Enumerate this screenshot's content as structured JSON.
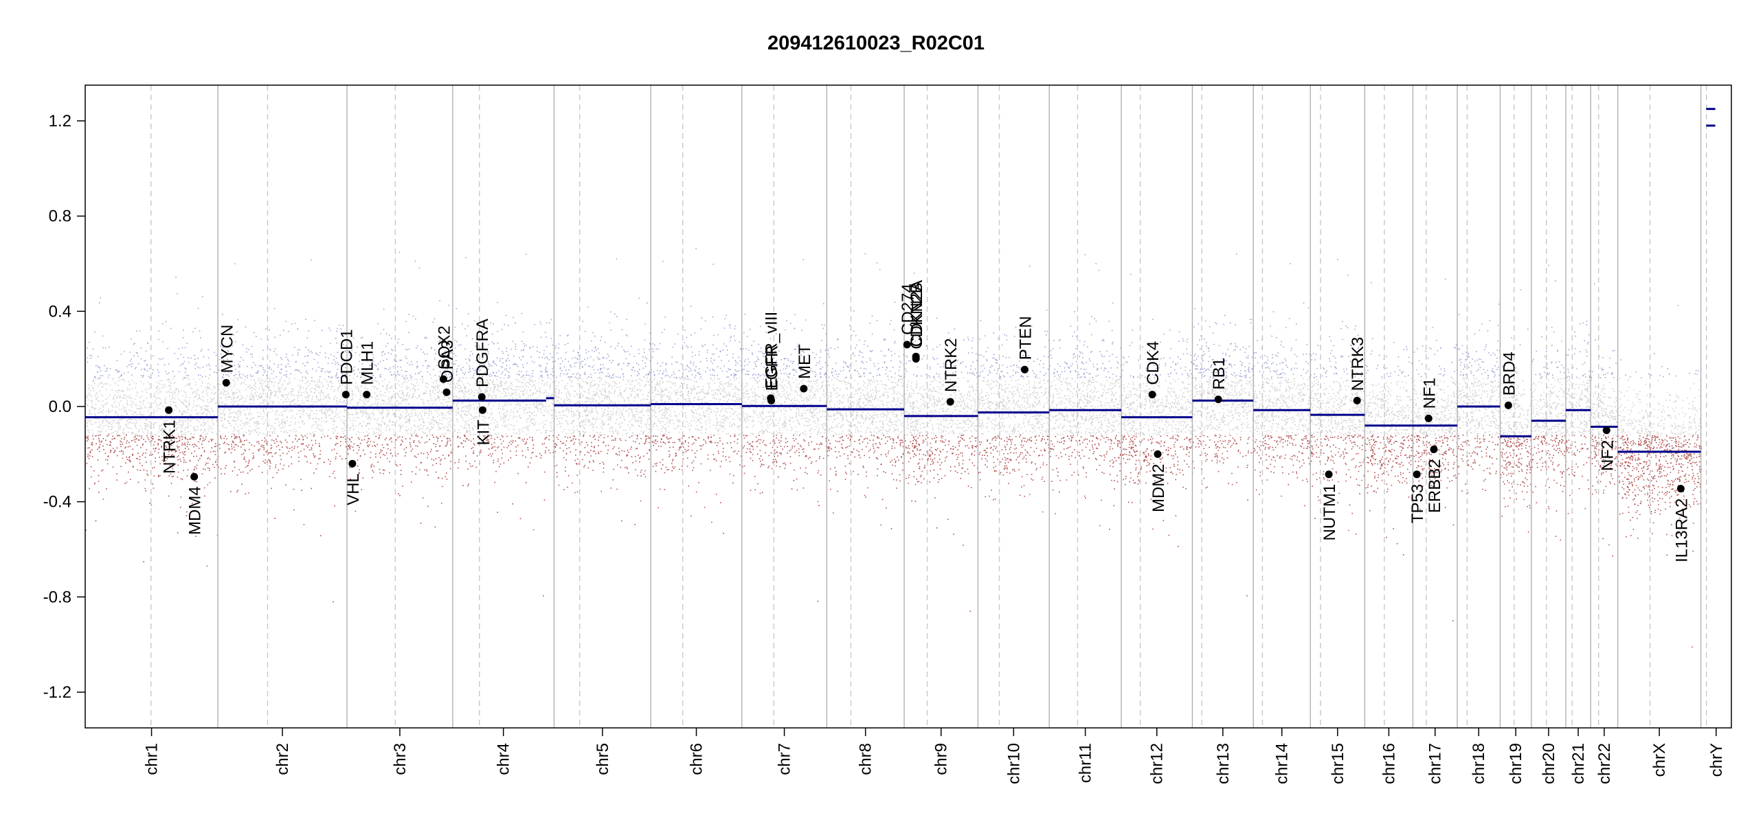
{
  "chart_data": {
    "type": "scatter",
    "title": "209412610023_R02C01",
    "xlabel": "",
    "ylabel": "",
    "ylim": [
      -1.35,
      1.35
    ],
    "yticks": [
      -1.2,
      -0.8,
      -0.4,
      0.0,
      0.4,
      0.8,
      1.2
    ],
    "ytick_labels": [
      "-1.2",
      "-0.8",
      "-0.4",
      "0.0",
      "0.4",
      "0.8",
      "1.2"
    ],
    "grid": false,
    "colors": {
      "gain": "#8f98cc",
      "loss": "#a63232",
      "neutral": "#bdbdbd",
      "segment": "#00008b",
      "divider": "#b0b0b0",
      "centromere": "#c8c8c8",
      "gene": "#000000"
    },
    "chromosomes": [
      {
        "name": "chr1",
        "start": 0.0,
        "end": 248.9,
        "centromere": 123.4,
        "segments": [
          {
            "start": 0.0,
            "end": 248.9,
            "value": -0.045
          }
        ]
      },
      {
        "name": "chr2",
        "start": 248.9,
        "end": 491.1,
        "centromere": 342.1,
        "segments": [
          {
            "start": 248.9,
            "end": 491.1,
            "value": 0.0
          }
        ]
      },
      {
        "name": "chr3",
        "start": 491.1,
        "end": 689.4,
        "centromere": 581.7,
        "segments": [
          {
            "start": 491.1,
            "end": 689.4,
            "value": -0.005
          }
        ]
      },
      {
        "name": "chr4",
        "start": 689.4,
        "end": 879.6,
        "centromere": 739.6,
        "segments": [
          {
            "start": 689.4,
            "end": 864.6,
            "value": 0.025
          },
          {
            "start": 864.6,
            "end": 879.6,
            "value": 0.035
          }
        ]
      },
      {
        "name": "chr5",
        "start": 879.6,
        "end": 1061.1,
        "centromere": 927.7,
        "segments": [
          {
            "start": 879.6,
            "end": 1061.1,
            "value": 0.005
          }
        ]
      },
      {
        "name": "chr6",
        "start": 1061.1,
        "end": 1231.9,
        "centromere": 1120.9,
        "segments": [
          {
            "start": 1061.1,
            "end": 1231.9,
            "value": 0.01
          }
        ]
      },
      {
        "name": "chr7",
        "start": 1231.9,
        "end": 1391.2,
        "centromere": 1291.9,
        "segments": [
          {
            "start": 1231.9,
            "end": 1391.2,
            "value": 0.002
          }
        ]
      },
      {
        "name": "chr8",
        "start": 1391.2,
        "end": 1536.4,
        "centromere": 1436.4,
        "segments": [
          {
            "start": 1391.2,
            "end": 1536.4,
            "value": -0.012
          }
        ]
      },
      {
        "name": "chr9",
        "start": 1536.4,
        "end": 1674.8,
        "centromere": 1579.6,
        "segments": [
          {
            "start": 1536.4,
            "end": 1674.8,
            "value": -0.04
          }
        ]
      },
      {
        "name": "chr10",
        "start": 1674.8,
        "end": 1808.6,
        "centromere": 1714.9,
        "segments": [
          {
            "start": 1674.8,
            "end": 1808.6,
            "value": -0.025
          }
        ]
      },
      {
        "name": "chr11",
        "start": 1808.6,
        "end": 1943.7,
        "centromere": 1861.7,
        "segments": [
          {
            "start": 1808.6,
            "end": 1943.7,
            "value": -0.015
          }
        ]
      },
      {
        "name": "chr12",
        "start": 1943.7,
        "end": 2077.0,
        "centromere": 1979.2,
        "segments": [
          {
            "start": 1943.7,
            "end": 2077.0,
            "value": -0.045
          }
        ]
      },
      {
        "name": "chr13",
        "start": 2077.0,
        "end": 2191.4,
        "centromere": 2094.7,
        "segments": [
          {
            "start": 2077.0,
            "end": 2191.4,
            "value": 0.025
          }
        ]
      },
      {
        "name": "chr14",
        "start": 2191.4,
        "end": 2298.4,
        "centromere": 2208.5,
        "segments": [
          {
            "start": 2191.4,
            "end": 2298.4,
            "value": -0.015
          }
        ]
      },
      {
        "name": "chr15",
        "start": 2298.4,
        "end": 2400.4,
        "centromere": 2317.4,
        "segments": [
          {
            "start": 2298.4,
            "end": 2400.4,
            "value": -0.035
          }
        ]
      },
      {
        "name": "chr16",
        "start": 2400.4,
        "end": 2490.7,
        "centromere": 2437.2,
        "segments": [
          {
            "start": 2400.4,
            "end": 2490.7,
            "value": -0.08
          }
        ]
      },
      {
        "name": "chr17",
        "start": 2490.7,
        "end": 2574.0,
        "centromere": 2515.7,
        "segments": [
          {
            "start": 2490.7,
            "end": 2574.0,
            "value": -0.08
          }
        ]
      },
      {
        "name": "chr18",
        "start": 2574.0,
        "end": 2654.4,
        "centromere": 2592.5,
        "segments": [
          {
            "start": 2574.0,
            "end": 2654.4,
            "value": 0.0
          }
        ]
      },
      {
        "name": "chr19",
        "start": 2654.4,
        "end": 2713.0,
        "centromere": 2680.6,
        "segments": [
          {
            "start": 2654.4,
            "end": 2713.0,
            "value": -0.125
          }
        ]
      },
      {
        "name": "chr20",
        "start": 2713.0,
        "end": 2777.5,
        "centromere": 2741.2,
        "segments": [
          {
            "start": 2713.0,
            "end": 2777.5,
            "value": -0.06
          }
        ]
      },
      {
        "name": "chr21",
        "start": 2777.5,
        "end": 2824.2,
        "centromere": 2789.5,
        "segments": [
          {
            "start": 2777.5,
            "end": 2824.2,
            "value": -0.015
          }
        ]
      },
      {
        "name": "chr22",
        "start": 2824.2,
        "end": 2875.0,
        "centromere": 2839.1,
        "segments": [
          {
            "start": 2824.2,
            "end": 2875.0,
            "value": -0.085
          }
        ]
      },
      {
        "name": "chrX",
        "start": 2875.0,
        "end": 3031.0,
        "centromere": 2935.6,
        "segments": [
          {
            "start": 2875.0,
            "end": 3031.0,
            "value": -0.19
          }
        ]
      },
      {
        "name": "chrY",
        "start": 3031.0,
        "end": 3088.2,
        "centromere": 3041.4,
        "segments": [
          {
            "start": 3041.0,
            "end": 3058.0,
            "value": 1.25
          },
          {
            "start": 3041.0,
            "end": 3058.0,
            "value": 1.18
          }
        ]
      }
    ],
    "genes": [
      {
        "name": "NTRK1",
        "x": 156.8,
        "y": -0.015,
        "side": "below"
      },
      {
        "name": "MDM4",
        "x": 204.5,
        "y": -0.295,
        "side": "below"
      },
      {
        "name": "MYCN",
        "x": 264.6,
        "y": 0.1,
        "side": "above"
      },
      {
        "name": "PDCD1",
        "x": 489.0,
        "y": 0.05,
        "side": "above"
      },
      {
        "name": "VHL",
        "x": 501.2,
        "y": -0.24,
        "side": "below"
      },
      {
        "name": "MLH1",
        "x": 528.1,
        "y": 0.05,
        "side": "above"
      },
      {
        "name": "SOX2",
        "x": 672.0,
        "y": 0.115,
        "side": "above"
      },
      {
        "name": "OPA3",
        "x": 678.0,
        "y": 0.06,
        "side": "above"
      },
      {
        "name": "PDGFRA",
        "x": 744.0,
        "y": 0.04,
        "side": "above"
      },
      {
        "name": "KIT",
        "x": 745.5,
        "y": -0.015,
        "side": "below"
      },
      {
        "name": "EGFR_vIII",
        "x": 1286.0,
        "y": 0.035,
        "side": "above"
      },
      {
        "name": "EGFR",
        "x": 1287.0,
        "y": 0.025,
        "side": "above"
      },
      {
        "name": "MET",
        "x": 1348.0,
        "y": 0.075,
        "side": "above"
      },
      {
        "name": "CD274",
        "x": 1541.8,
        "y": 0.26,
        "side": "above"
      },
      {
        "name": "CDKN2A",
        "x": 1558.4,
        "y": 0.21,
        "side": "above"
      },
      {
        "name": "CDKN2B",
        "x": 1558.5,
        "y": 0.2,
        "side": "above"
      },
      {
        "name": "NTRK2",
        "x": 1623.0,
        "y": 0.02,
        "side": "above"
      },
      {
        "name": "PTEN",
        "x": 1762.5,
        "y": 0.155,
        "side": "above"
      },
      {
        "name": "CDK4",
        "x": 2001.8,
        "y": 0.05,
        "side": "above"
      },
      {
        "name": "MDM2",
        "x": 2012.0,
        "y": -0.2,
        "side": "below"
      },
      {
        "name": "RB1",
        "x": 2125.6,
        "y": 0.03,
        "side": "above"
      },
      {
        "name": "NUTM1",
        "x": 2333.0,
        "y": -0.285,
        "side": "below"
      },
      {
        "name": "NTRK3",
        "x": 2386.0,
        "y": 0.025,
        "side": "above"
      },
      {
        "name": "TP53",
        "x": 2498.2,
        "y": -0.285,
        "side": "below"
      },
      {
        "name": "NF1",
        "x": 2520.2,
        "y": -0.05,
        "side": "above"
      },
      {
        "name": "ERBB2",
        "x": 2530.1,
        "y": -0.18,
        "side": "below"
      },
      {
        "name": "BRD4",
        "x": 2669.8,
        "y": 0.005,
        "side": "above"
      },
      {
        "name": "NF2",
        "x": 2854.0,
        "y": -0.1,
        "side": "below"
      },
      {
        "name": "IL13RA2",
        "x": 2993.3,
        "y": -0.345,
        "side": "below"
      }
    ]
  }
}
